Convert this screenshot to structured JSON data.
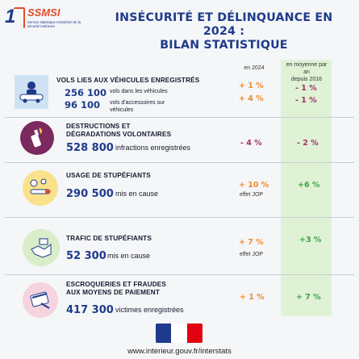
{
  "header": {
    "logo_mark": "1",
    "logo_name": "SSMSI",
    "logo_subtitle": "Service statistique ministériel de la sécurité intérieure",
    "title_line1": "INSÉCURITÉ ET DÉLINQUANCE EN 2024 :",
    "title_line2": "BILAN STATISTIQUE"
  },
  "columns": {
    "col1": "en 2024",
    "col2_line1": "en moyenne par an",
    "col2_line2": "depuis 2016"
  },
  "rows": [
    {
      "title": "VOLS LIES AUX VÉHICULES ENREGISTRÉS",
      "sub": [
        {
          "num": "256 100",
          "label": "vols dans les véhicules",
          "y2024": "+ 1 %",
          "avg": "- 1 %"
        },
        {
          "num": "96 100",
          "label": "vols d'accessoires sur",
          "label2": "véhicules",
          "y2024": "+ 4 %",
          "avg": "- 1 %"
        }
      ]
    },
    {
      "title_line1": "DESTRUCTIONS ET",
      "title_line2": "DÉGRADATIONS VOLONTAIRES",
      "num": "528 800",
      "label": "infractions enregistrées",
      "y2024": "- 4 %",
      "avg": "- 2 %"
    },
    {
      "title": "USAGE DE STUPÉFIANTS",
      "num": "290 500",
      "label": "mis en cause",
      "y2024": "+ 10 %",
      "note": "effet JOP",
      "avg": "+6 %"
    },
    {
      "title": "TRAFIC DE STUPÉFIANTS",
      "num": "52 300",
      "label": "mis en cause",
      "y2024": "+ 7 %",
      "note": "effet JOP",
      "avg": "+3 %"
    },
    {
      "title_line1": "ESCROQUERIES ET FRAUDES",
      "title_line2": "AUX MOYENS DE PAIEMENT",
      "num": "417 300",
      "label": "victimes enregistrées",
      "y2024": "+ 1 %",
      "avg": "+ 7 %"
    }
  ],
  "footer": {
    "url": "www.interieur.gouv.fr/interstats"
  },
  "colors": {
    "navy": "#1f3a8a",
    "orange": "#f08a2a",
    "purple": "#a0336b",
    "green": "#3da342",
    "green_bg": "#dff2d6",
    "icon_blue": "#cfe2f3",
    "icon_purple": "#7a2a5e",
    "icon_yellow": "#f9e28a",
    "icon_green": "#d8edc8",
    "icon_pink": "#f5d3df"
  }
}
